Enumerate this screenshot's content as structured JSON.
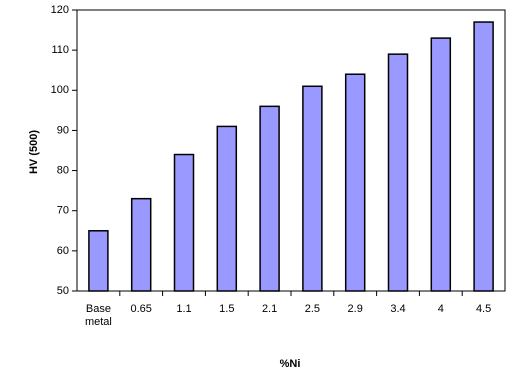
{
  "chart_data": {
    "type": "bar",
    "title": "",
    "xlabel": "%Ni",
    "ylabel": "HV (500)",
    "ylim": [
      50,
      120
    ],
    "yticks": [
      50,
      60,
      70,
      80,
      90,
      100,
      110,
      120
    ],
    "grid": false,
    "legend": "none",
    "categories": [
      [
        "Base",
        "metal"
      ],
      [
        "0.65"
      ],
      [
        "1.1"
      ],
      [
        "1.5"
      ],
      [
        "2.1"
      ],
      [
        "2.5"
      ],
      [
        "2.9"
      ],
      [
        "3.4"
      ],
      [
        "4"
      ],
      [
        "4.5"
      ]
    ],
    "values": [
      65,
      73,
      84,
      91,
      96,
      101,
      104,
      109,
      113,
      117
    ],
    "bar_color": "#9999ff",
    "bar_stroke": "#000000"
  }
}
